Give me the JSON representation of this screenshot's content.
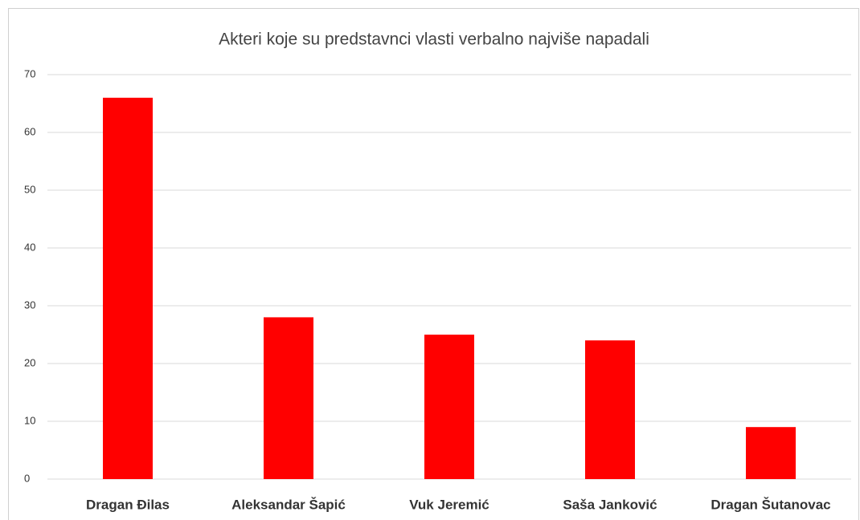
{
  "chart_data": {
    "type": "bar",
    "title": "Akteri koje su predstavnci vlasti verbalno najviše napadali",
    "categories": [
      "Dragan Đilas",
      "Aleksandar Šapić",
      "Vuk Jeremić",
      "Saša Janković",
      "Dragan Šutanovac"
    ],
    "values": [
      66,
      28,
      25,
      24,
      9
    ],
    "color": "#ff0000",
    "ylim": [
      0,
      70
    ],
    "yticks": [
      0,
      10,
      20,
      30,
      40,
      50,
      60,
      70
    ],
    "grid": true
  }
}
